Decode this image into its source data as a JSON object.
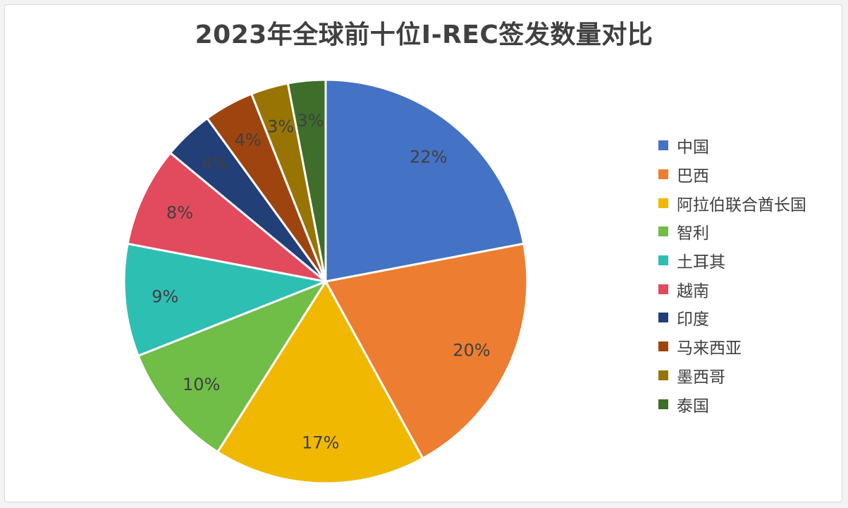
{
  "chart_data": {
    "type": "pie",
    "title": "2023年全球前十位I-REC签发数量对比",
    "categories": [
      "中国",
      "巴西",
      "阿拉伯联合酋长国",
      "智利",
      "土耳其",
      "越南",
      "印度",
      "马来西亚",
      "墨西哥",
      "泰国"
    ],
    "values": [
      22,
      20,
      17,
      10,
      9,
      8,
      4,
      4,
      3,
      3
    ],
    "labels": [
      "22%",
      "20%",
      "17%",
      "10%",
      "9%",
      "8%",
      "4%",
      "4%",
      "3%",
      "3%"
    ],
    "colors": [
      "#4472C4",
      "#ED7D31",
      "#F1B802",
      "#70BD47",
      "#2EBFB3",
      "#E24A5E",
      "#223F78",
      "#9E450F",
      "#977404",
      "#3E6E2A"
    ],
    "legend_position": "right"
  }
}
